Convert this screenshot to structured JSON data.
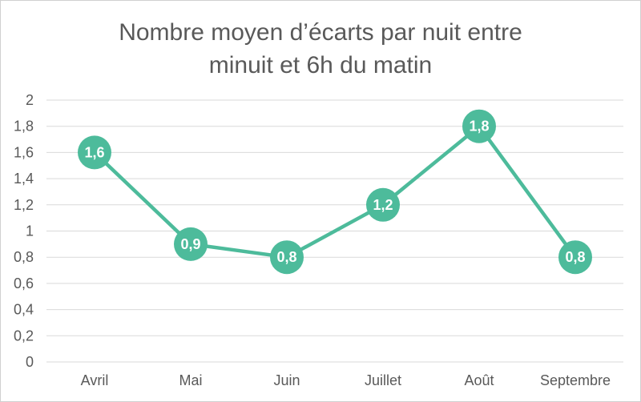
{
  "chart_data": {
    "type": "line",
    "title_lines": [
      "Nombre moyen d’écarts par nuit entre",
      "minuit et 6h du matin"
    ],
    "categories": [
      "Avril",
      "Mai",
      "Juin",
      "Juillet",
      "Août",
      "Septembre"
    ],
    "values": [
      1.6,
      0.9,
      0.8,
      1.2,
      1.8,
      0.8
    ],
    "data_labels": [
      "1,6",
      "0,9",
      "0,8",
      "1,2",
      "1,8",
      "0,8"
    ],
    "y_ticks": [
      "0",
      "0,2",
      "0,4",
      "0,6",
      "0,8",
      "1",
      "1,2",
      "1,4",
      "1,6",
      "1,8",
      "2"
    ],
    "y_tick_values": [
      0,
      0.2,
      0.4,
      0.6,
      0.8,
      1,
      1.2,
      1.4,
      1.6,
      1.8,
      2
    ],
    "ylim": [
      0,
      2
    ],
    "grid": true,
    "legend": "none",
    "line_color": "#4DBB9B",
    "grid_color": "#d9d9d9",
    "text_color": "#595959"
  }
}
